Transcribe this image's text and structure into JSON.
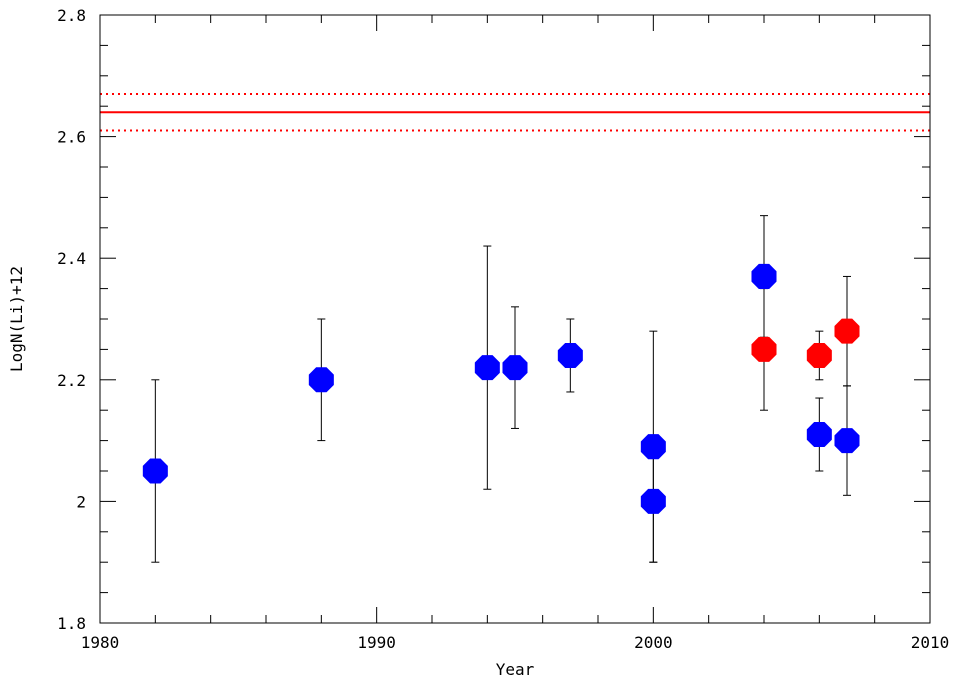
{
  "chart_data": {
    "type": "scatter",
    "title": "",
    "xlabel": "Year",
    "ylabel": "LogN(Li)+12",
    "xlim": [
      1980,
      2010
    ],
    "ylim": [
      1.8,
      2.8
    ],
    "x_ticks": [
      1980,
      1990,
      2000,
      2010
    ],
    "x_tick_labels": [
      "1980",
      "1990",
      "2000",
      "2010"
    ],
    "y_ticks": [
      1.8,
      2.0,
      2.2,
      2.4,
      2.6,
      2.8
    ],
    "y_tick_labels": [
      "1.8",
      "2",
      "2.2",
      "2.4",
      "2.6",
      "2.8"
    ],
    "x_minor_step": 2,
    "y_minor_step": 0.05,
    "grid": false,
    "series": [
      {
        "color": "#0000ff",
        "points": [
          {
            "x": 1982,
            "y": 2.05,
            "err_low": 1.9,
            "err_high": 2.2
          },
          {
            "x": 1988,
            "y": 2.2,
            "err_low": 2.1,
            "err_high": 2.3
          },
          {
            "x": 1994,
            "y": 2.22,
            "err_low": 2.02,
            "err_high": 2.42
          },
          {
            "x": 1995,
            "y": 2.22,
            "err_low": 2.12,
            "err_high": 2.32
          },
          {
            "x": 1997,
            "y": 2.24,
            "err_low": 2.18,
            "err_high": 2.3
          },
          {
            "x": 2000,
            "y": 2.09,
            "err_low": 1.9,
            "err_high": 2.28
          },
          {
            "x": 2000,
            "y": 2.0,
            "err_low": 1.9,
            "err_high": 2.1
          },
          {
            "x": 2004,
            "y": 2.37,
            "err_low": 2.27,
            "err_high": 2.47
          },
          {
            "x": 2006,
            "y": 2.11,
            "err_low": 2.05,
            "err_high": 2.17
          },
          {
            "x": 2007,
            "y": 2.1,
            "err_low": 2.01,
            "err_high": 2.19
          }
        ]
      },
      {
        "color": "#ff0000",
        "points": [
          {
            "x": 2004,
            "y": 2.25,
            "err_low": 2.15,
            "err_high": 2.35
          },
          {
            "x": 2006,
            "y": 2.24,
            "err_low": 2.2,
            "err_high": 2.28
          },
          {
            "x": 2007,
            "y": 2.28,
            "err_low": 2.19,
            "err_high": 2.37
          }
        ]
      }
    ],
    "reference_lines": [
      {
        "y": 2.64,
        "style": "solid",
        "color": "#ff0000"
      },
      {
        "y": 2.67,
        "style": "dotted",
        "color": "#ff0000"
      },
      {
        "y": 2.61,
        "style": "dotted",
        "color": "#ff0000"
      }
    ]
  }
}
